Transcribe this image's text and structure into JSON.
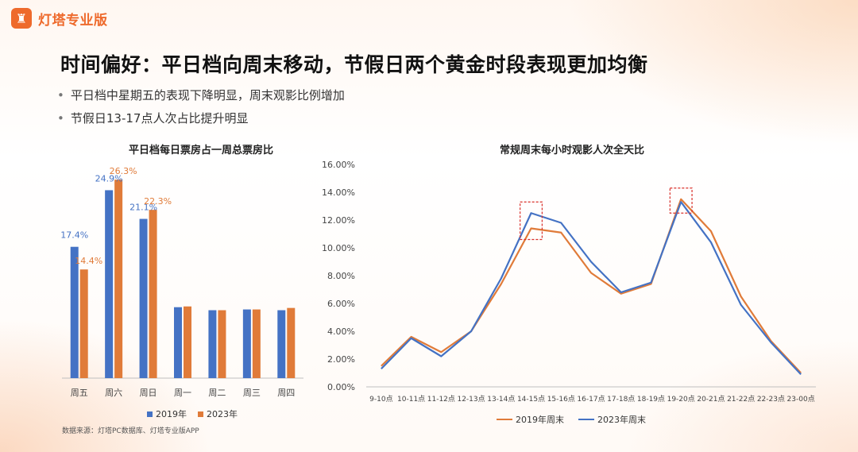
{
  "brand": {
    "name": "灯塔专业版",
    "icon": "lighthouse-icon",
    "color": "#ee6a2c"
  },
  "title": "时间偏好：平日档向周末移动，节假日两个黄金时段表现更加均衡",
  "bullets": [
    "平日档中星期五的表现下降明显，周末观影比例增加",
    "节假日13-17点人次占比提升明显"
  ],
  "source": "数据来源：灯塔PC数据库、灯塔专业版APP",
  "colors": {
    "s2019_bar": "#4472c4",
    "s2023_bar": "#e07b39",
    "s2019_line": "#e07b39",
    "s2023_line": "#4472c4",
    "highlight_box": "#d9302b"
  },
  "chart_data": [
    {
      "type": "bar",
      "title": "平日档每日票房占一周总票房比",
      "categories": [
        "周五",
        "周六",
        "周日",
        "周一",
        "周二",
        "周三",
        "周四"
      ],
      "series": [
        {
          "name": "2019年",
          "values": [
            17.4,
            24.9,
            21.1,
            9.4,
            9.0,
            9.1,
            9.0
          ]
        },
        {
          "name": "2023年",
          "values": [
            14.4,
            26.3,
            22.3,
            9.5,
            9.0,
            9.1,
            9.3
          ]
        }
      ],
      "data_labels": {
        "周五": [
          "17.4%",
          "14.4%"
        ],
        "周六": [
          "24.9%",
          "26.3%"
        ],
        "周日": [
          "21.1%",
          "22.3%"
        ]
      },
      "ylim": [
        0,
        28
      ],
      "legend": "bottom"
    },
    {
      "type": "line",
      "title": "常规周末每小时观影人次全天比",
      "x": [
        "9-10点",
        "10-11点",
        "11-12点",
        "12-13点",
        "13-14点",
        "14-15点",
        "15-16点",
        "16-17点",
        "17-18点",
        "18-19点",
        "19-20点",
        "20-21点",
        "21-22点",
        "22-23点",
        "23-00点"
      ],
      "series": [
        {
          "name": "2019年周末",
          "values": [
            1.5,
            3.6,
            2.5,
            4.0,
            7.4,
            11.4,
            11.1,
            8.2,
            6.7,
            7.4,
            13.5,
            11.2,
            6.5,
            3.3,
            1.0
          ]
        },
        {
          "name": "2023年周末",
          "values": [
            1.3,
            3.5,
            2.2,
            4.0,
            7.8,
            12.5,
            11.8,
            9.0,
            6.8,
            7.5,
            13.3,
            10.4,
            5.9,
            3.2,
            0.9
          ]
        }
      ],
      "yticks": [
        "0.00%",
        "2.00%",
        "4.00%",
        "6.00%",
        "8.00%",
        "10.00%",
        "12.00%",
        "14.00%",
        "16.00%"
      ],
      "ylim": [
        0,
        16
      ],
      "highlights": [
        [
          "13-14点",
          "15-16点"
        ],
        [
          "18-19点",
          "20-21点"
        ]
      ],
      "legend": "bottom"
    }
  ]
}
